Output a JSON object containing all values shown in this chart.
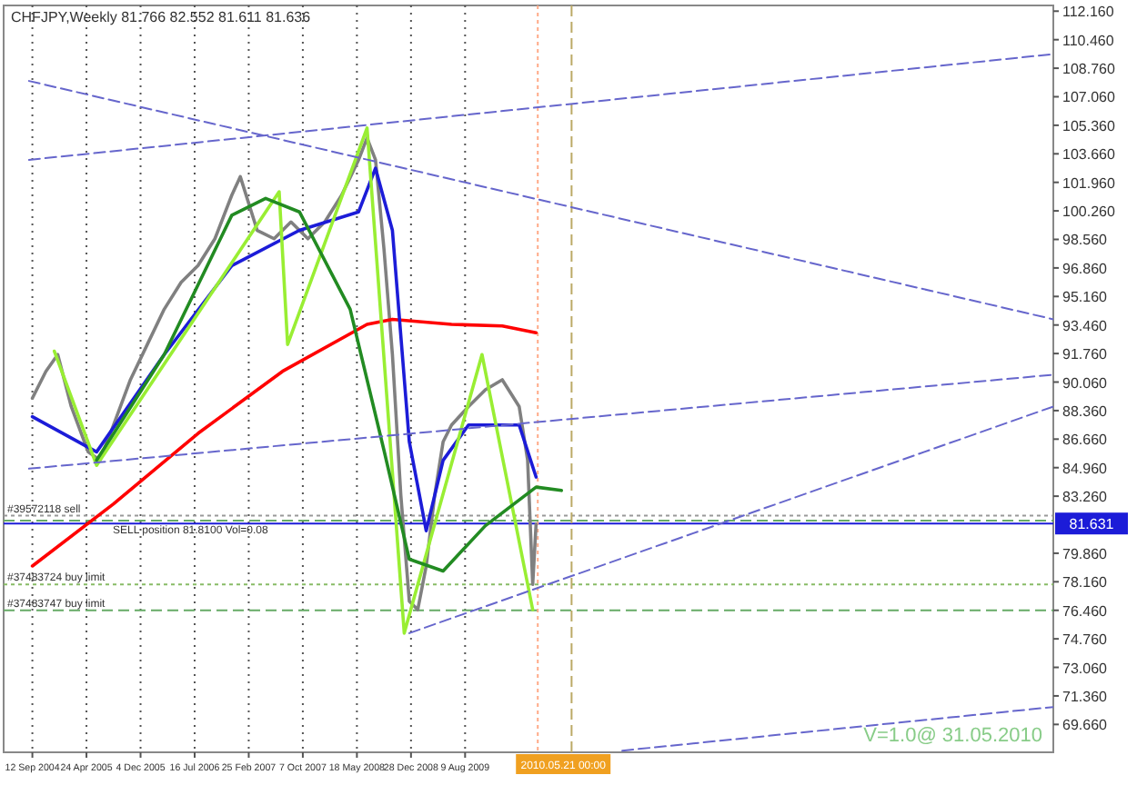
{
  "chart_data": {
    "type": "line",
    "title": "CHFJPY,Weekly  81.766 82.552 81.611 81.636",
    "xlim": [
      "2004-05-16",
      "2016-04-10"
    ],
    "ylim": [
      68.0,
      112.5
    ],
    "xticks": [
      {
        "value": "2004-09-12",
        "label": "12 Sep 2004"
      },
      {
        "value": "2005-04-24",
        "label": "24 Apr 2005"
      },
      {
        "value": "2005-12-04",
        "label": "4 Dec 2005"
      },
      {
        "value": "2006-07-16",
        "label": "16 Jul 2006"
      },
      {
        "value": "2007-02-25",
        "label": "25 Feb 2007"
      },
      {
        "value": "2007-10-07",
        "label": "7 Oct 2007"
      },
      {
        "value": "2008-05-18",
        "label": "18 May 2008"
      },
      {
        "value": "2008-12-28",
        "label": "28 Dec 2008"
      },
      {
        "value": "2009-08-09",
        "label": "9 Aug 2009"
      }
    ],
    "yticks": [
      {
        "value": 69.66,
        "label": "69.660"
      },
      {
        "value": 71.36,
        "label": "71.360"
      },
      {
        "value": 73.06,
        "label": "73.060"
      },
      {
        "value": 74.76,
        "label": "74.760"
      },
      {
        "value": 76.46,
        "label": "76.460"
      },
      {
        "value": 78.16,
        "label": "78.160"
      },
      {
        "value": 79.86,
        "label": "79.860"
      },
      {
        "value": 83.26,
        "label": "83.260"
      },
      {
        "value": 84.96,
        "label": "84.960"
      },
      {
        "value": 86.66,
        "label": "86.660"
      },
      {
        "value": 88.36,
        "label": "88.360"
      },
      {
        "value": 90.06,
        "label": "90.060"
      },
      {
        "value": 91.76,
        "label": "91.760"
      },
      {
        "value": 93.46,
        "label": "93.460"
      },
      {
        "value": 95.16,
        "label": "95.160"
      },
      {
        "value": 96.86,
        "label": "96.860"
      },
      {
        "value": 98.56,
        "label": "98.560"
      },
      {
        "value": 100.26,
        "label": "100.260"
      },
      {
        "value": 101.96,
        "label": "101.960"
      },
      {
        "value": 103.66,
        "label": "103.660"
      },
      {
        "value": 105.36,
        "label": "105.360"
      },
      {
        "value": 107.06,
        "label": "107.060"
      },
      {
        "value": 108.76,
        "label": "108.760"
      },
      {
        "value": 110.46,
        "label": "110.460"
      },
      {
        "value": 112.16,
        "label": "112.160"
      }
    ],
    "grid": "x",
    "series": [
      {
        "color": "#808080",
        "x": [
          "2004-09-12",
          "2004-11-07",
          "2004-12-26",
          "2005-02-20",
          "2005-05-01",
          "2005-06-19",
          "2005-08-14",
          "2005-10-23",
          "2006-01-01",
          "2006-03-12",
          "2006-05-21",
          "2006-07-30",
          "2006-10-08",
          "2006-12-17",
          "2007-01-21",
          "2007-04-01",
          "2007-06-10",
          "2007-08-19",
          "2007-10-28",
          "2008-01-06",
          "2008-03-16",
          "2008-05-25",
          "2008-06-29",
          "2008-08-03",
          "2008-09-07",
          "2008-10-12",
          "2008-11-16",
          "2008-12-21",
          "2009-01-25",
          "2009-03-01",
          "2009-04-05",
          "2009-05-10",
          "2009-06-14",
          "2009-08-23",
          "2009-11-01",
          "2010-01-10",
          "2010-03-21",
          "2010-04-25",
          "2010-05-16",
          "2010-05-30"
        ],
        "values": [
          89.1,
          90.7,
          91.7,
          88.6,
          85.9,
          85.4,
          87.5,
          90.2,
          92.3,
          94.4,
          96.0,
          97.0,
          98.6,
          101.2,
          102.3,
          99.1,
          98.6,
          99.6,
          98.6,
          99.6,
          101.2,
          103.3,
          104.6,
          103.3,
          98.0,
          91.7,
          83.3,
          77.0,
          76.5,
          79.1,
          83.3,
          86.5,
          87.5,
          88.6,
          89.6,
          90.2,
          88.6,
          85.4,
          78.0,
          81.6
        ]
      },
      {
        "color": "#ff0000",
        "x": [
          "2004-09-12",
          "2005-08-14",
          "2006-07-30",
          "2007-07-15",
          "2008-06-29",
          "2008-10-12",
          "2009-06-14",
          "2010-01-10",
          "2010-05-30"
        ],
        "values": [
          79.1,
          82.8,
          87.0,
          90.7,
          93.5,
          93.8,
          93.5,
          93.4,
          93.0
        ]
      },
      {
        "color": "#1c1cd8",
        "x": [
          "2004-09-12",
          "2005-06-05",
          "2006-03-12",
          "2006-12-17",
          "2007-09-23",
          "2008-05-25",
          "2008-08-03",
          "2008-10-12",
          "2008-12-21",
          "2009-03-01",
          "2009-05-10",
          "2009-08-23",
          "2010-03-21",
          "2010-05-30"
        ],
        "values": [
          88.0,
          85.9,
          91.7,
          97.0,
          99.1,
          100.2,
          102.8,
          99.1,
          86.5,
          81.2,
          85.4,
          87.5,
          87.5,
          84.4
        ]
      },
      {
        "color": "#99ee33",
        "x": [
          "2004-12-12",
          "2005-06-05",
          "2007-07-01",
          "2007-08-05",
          "2008-06-29",
          "2008-11-30",
          "2009-10-18",
          "2010-05-16"
        ],
        "values": [
          91.9,
          85.1,
          101.4,
          92.3,
          105.2,
          75.1,
          91.7,
          76.5
        ]
      },
      {
        "color": "#228b22",
        "x": [
          "2005-06-05",
          "2006-03-12",
          "2006-12-17",
          "2007-05-06",
          "2007-09-23",
          "2008-04-20",
          "2008-09-07",
          "2008-12-21",
          "2009-05-10",
          "2009-11-01",
          "2010-05-30",
          "2010-09-12"
        ],
        "values": [
          85.4,
          91.7,
          100.0,
          101.0,
          100.2,
          94.4,
          86.0,
          79.5,
          78.8,
          81.5,
          83.8,
          83.6
        ]
      },
      {
        "color": "#6666cc",
        "line_style": "dashed",
        "x": [
          "2004-08-29",
          "2016-04-10"
        ],
        "values": [
          108.0,
          93.8
        ]
      },
      {
        "color": "#6666cc",
        "line_style": "dashed",
        "x": [
          "2004-08-29",
          "2016-04-10"
        ],
        "values": [
          103.3,
          109.6
        ]
      },
      {
        "color": "#6666cc",
        "line_style": "dashed",
        "x": [
          "2004-08-29",
          "2016-04-10"
        ],
        "values": [
          84.9,
          90.5
        ]
      },
      {
        "color": "#6666cc",
        "line_style": "dashed",
        "x": [
          "2008-12-21",
          "2016-04-10"
        ],
        "values": [
          75.1,
          88.6
        ]
      },
      {
        "color": "#6666cc",
        "line_style": "dashed",
        "x": [
          "2011-05-22",
          "2016-04-10"
        ],
        "values": [
          68.1,
          70.7
        ]
      }
    ],
    "ref_lines": [
      {
        "axis": "y",
        "value": 82.1,
        "label": "#39572118 sell",
        "color": "#999999",
        "line_style": "dotted"
      },
      {
        "axis": "y",
        "value": 81.81,
        "label": "SELL position 81.8100 Vol=0.08",
        "color": "#66aa66",
        "line_style": "dashed"
      },
      {
        "axis": "y",
        "value": 81.631,
        "label": "81.631",
        "color": "#1c1cd8",
        "line_style": "solid"
      },
      {
        "axis": "y",
        "value": 78.0,
        "label": "#37483724 buy limit",
        "color": "#88bb66",
        "line_style": "dotted"
      },
      {
        "axis": "y",
        "value": 76.46,
        "label": "#37483747 buy limit",
        "color": "#66aa66",
        "line_style": "dashed"
      },
      {
        "axis": "x",
        "value": "2010-06-06",
        "label": "2010.05.21 00:00",
        "color": "#ffaa88",
        "line_style": "dotted"
      },
      {
        "axis": "x",
        "value": "2010-10-24",
        "color": "#bbaa66",
        "line_style": "dashed"
      }
    ],
    "annotations": [
      "V=1.0@ 31.05.2010"
    ]
  }
}
